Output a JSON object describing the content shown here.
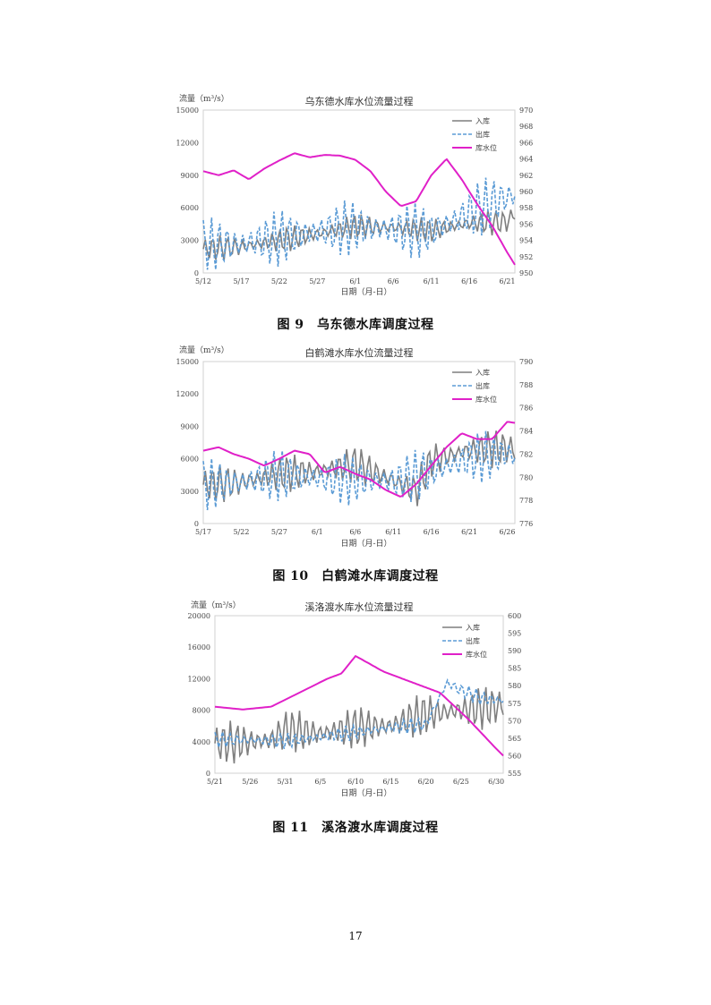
{
  "page": {
    "number": "17"
  },
  "chart_data": [
    {
      "type": "line",
      "title": "乌东德水库水位流量过程",
      "caption": "图 9　乌东德水库调度过程",
      "ylabel_left": "流量（m³/s）",
      "xlabel": "日期（月-日）",
      "y_left": {
        "min": 0,
        "max": 15000,
        "ticks": [
          "0",
          "3000",
          "6000",
          "9000",
          "12000",
          "15000"
        ]
      },
      "y_right": {
        "min": 950,
        "max": 970,
        "ticks": [
          "950",
          "952",
          "954",
          "956",
          "958",
          "960",
          "962",
          "964",
          "966",
          "968",
          "970"
        ]
      },
      "x_ticks": [
        "5/12",
        "5/17",
        "5/22",
        "5/27",
        "6/1",
        "6/6",
        "6/11",
        "6/16",
        "6/21"
      ],
      "legend": [
        "入库",
        "出库",
        "库水位"
      ],
      "colors": {
        "inflow": "#7f7f7f",
        "outflow": "#5b9bd5",
        "level": "#e020c8"
      },
      "series": [
        {
          "name": "入库",
          "axis": "left",
          "style": "solid",
          "swing": 1200,
          "x": [
            0,
            5,
            10,
            15,
            20,
            25,
            30,
            35,
            40,
            41
          ],
          "values": [
            2200,
            2400,
            3000,
            3600,
            4300,
            4200,
            3900,
            4600,
            4700,
            5500
          ]
        },
        {
          "name": "出库",
          "axis": "left",
          "style": "dashed",
          "swing": 2600,
          "x": [
            0,
            5,
            10,
            15,
            20,
            25,
            30,
            35,
            38,
            41
          ],
          "values": [
            2500,
            2700,
            3200,
            3800,
            4200,
            4000,
            3800,
            5500,
            6500,
            7200
          ]
        },
        {
          "name": "库水位",
          "axis": "right",
          "style": "solid",
          "swing": 0,
          "x": [
            0,
            2,
            4,
            6,
            8,
            10,
            12,
            14,
            16,
            18,
            20,
            22,
            24,
            26,
            28,
            30,
            32,
            34,
            36,
            38,
            40,
            41
          ],
          "values": [
            962.5,
            962.0,
            962.6,
            961.5,
            962.8,
            963.8,
            964.7,
            964.2,
            964.5,
            964.4,
            963.9,
            962.5,
            960.0,
            958.2,
            958.8,
            962.0,
            964.0,
            961.5,
            958.5,
            955.8,
            952.5,
            951.0
          ]
        }
      ]
    },
    {
      "type": "line",
      "title": "白鹤滩水库水位流量过程",
      "caption": "图 10　白鹤滩水库调度过程",
      "ylabel_left": "流量（m³/s）",
      "xlabel": "日期（月-日）",
      "y_left": {
        "min": 0,
        "max": 15000,
        "ticks": [
          "0",
          "3000",
          "6000",
          "9000",
          "12000",
          "15000"
        ]
      },
      "y_right": {
        "min": 776,
        "max": 790,
        "ticks": [
          "776",
          "778",
          "780",
          "782",
          "784",
          "786",
          "788",
          "790"
        ]
      },
      "x_ticks": [
        "5/17",
        "5/22",
        "5/27",
        "6/1",
        "6/6",
        "6/11",
        "6/16",
        "6/21",
        "6/26"
      ],
      "legend": [
        "入库",
        "出库",
        "库水位"
      ],
      "colors": {
        "inflow": "#7f7f7f",
        "outflow": "#5b9bd5",
        "level": "#e020c8"
      },
      "series": [
        {
          "name": "入库",
          "axis": "left",
          "style": "solid",
          "swing": 1800,
          "x": [
            0,
            5,
            10,
            15,
            20,
            25,
            28,
            30,
            35,
            40,
            41
          ],
          "values": [
            3600,
            3800,
            4600,
            4800,
            5500,
            4000,
            3000,
            5800,
            6800,
            7000,
            6800
          ]
        },
        {
          "name": "出库",
          "axis": "left",
          "style": "dashed",
          "swing": 2400,
          "x": [
            0,
            5,
            10,
            15,
            20,
            25,
            30,
            35,
            40,
            41
          ],
          "values": [
            3600,
            3800,
            4500,
            4200,
            4000,
            3900,
            4800,
            6000,
            6500,
            6200
          ]
        },
        {
          "name": "库水位",
          "axis": "right",
          "style": "solid",
          "swing": 0,
          "x": [
            0,
            2,
            4,
            6,
            8,
            10,
            12,
            14,
            16,
            18,
            20,
            22,
            24,
            26,
            28,
            30,
            32,
            34,
            36,
            38,
            40,
            41
          ],
          "values": [
            782.3,
            782.6,
            782.0,
            781.6,
            781.0,
            781.6,
            782.3,
            782.0,
            780.4,
            780.9,
            780.3,
            779.8,
            778.9,
            778.3,
            779.4,
            781.0,
            782.6,
            783.8,
            783.3,
            783.3,
            784.8,
            784.7
          ]
        }
      ]
    },
    {
      "type": "line",
      "title": "溪洛渡水库水位流量过程",
      "caption": "图 11　溪洛渡水库调度过程",
      "ylabel_left": "流量（m³/s）",
      "xlabel": "日期（月-日）",
      "y_left": {
        "min": 0,
        "max": 20000,
        "ticks": [
          "0",
          "4000",
          "8000",
          "12000",
          "16000",
          "20000"
        ]
      },
      "y_right": {
        "min": 555,
        "max": 600,
        "ticks": [
          "555",
          "560",
          "565",
          "570",
          "575",
          "580",
          "585",
          "590",
          "595",
          "600"
        ]
      },
      "x_ticks": [
        "5/21",
        "5/26",
        "5/31",
        "6/5",
        "6/10",
        "6/15",
        "6/20",
        "6/25",
        "6/30"
      ],
      "legend": [
        "入库",
        "出库",
        "库水位"
      ],
      "colors": {
        "inflow": "#7f7f7f",
        "outflow": "#5b9bd5",
        "level": "#e020c8"
      },
      "series": [
        {
          "name": "入库",
          "axis": "left",
          "style": "solid",
          "swing": 2800,
          "x": [
            0,
            5,
            8,
            10,
            15,
            20,
            25,
            28,
            30,
            35,
            40,
            41
          ],
          "values": [
            3800,
            4000,
            4200,
            5500,
            5000,
            5800,
            6000,
            7000,
            7500,
            8000,
            8500,
            8700
          ]
        },
        {
          "name": "出库",
          "axis": "left",
          "style": "dashed",
          "swing": 1000,
          "x": [
            0,
            10,
            15,
            20,
            25,
            30,
            33,
            35,
            38,
            41
          ],
          "values": [
            4300,
            4100,
            4600,
            5200,
            5800,
            6200,
            11500,
            10500,
            9500,
            9200
          ]
        },
        {
          "name": "库水位",
          "axis": "right",
          "style": "solid",
          "swing": 0,
          "x": [
            0,
            4,
            8,
            12,
            16,
            18,
            20,
            24,
            28,
            32,
            36,
            40,
            41
          ],
          "values": [
            574.0,
            573.2,
            574.0,
            578.0,
            582.0,
            583.5,
            588.5,
            584.0,
            581.0,
            578.0,
            570.5,
            562.0,
            560.0
          ]
        }
      ]
    }
  ]
}
